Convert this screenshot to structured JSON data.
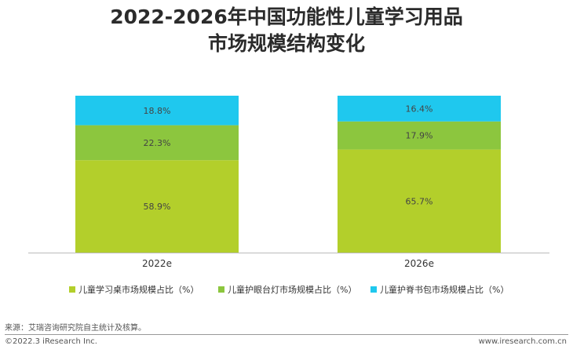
{
  "title": {
    "line1": "2022-2026年中国功能性儿童学习用品",
    "line2": "市场规模结构变化"
  },
  "chart_data": {
    "type": "bar",
    "stacked": true,
    "normalized_percent": true,
    "categories": [
      "2022e",
      "2026e"
    ],
    "series": [
      {
        "name": "儿童学习桌市场规模占比（%）",
        "values": [
          58.9,
          65.7
        ],
        "labels": [
          "58.9%",
          "65.7%"
        ],
        "color": "#b3cf2b"
      },
      {
        "name": "儿童护眼台灯市场规模占比（%）",
        "values": [
          22.3,
          17.9
        ],
        "labels": [
          "22.3%",
          "17.9%"
        ],
        "color": "#8cc63e"
      },
      {
        "name": "儿童护脊书包市场规模占比（%）",
        "values": [
          18.8,
          16.4
        ],
        "labels": [
          "18.8%",
          "16.4%"
        ],
        "color": "#1fc8ee"
      }
    ],
    "ylim": [
      0,
      100
    ],
    "grid": false,
    "legend_position": "bottom"
  },
  "footer": {
    "source": "来源：艾瑞咨询研究院自主统计及核算。",
    "copyright": "©2022.3 iResearch Inc.",
    "website": "www.iresearch.com.cn"
  }
}
